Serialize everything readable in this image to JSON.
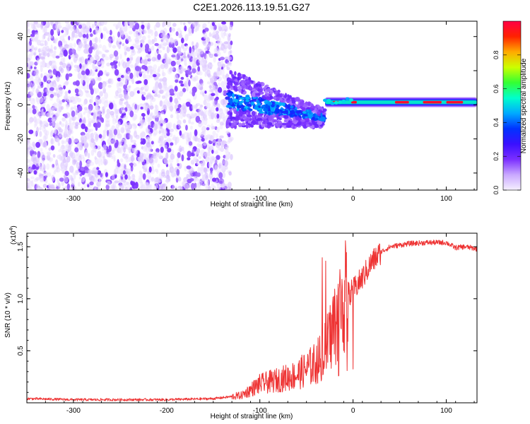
{
  "page": {
    "title": "C2E1.2026.113.19.51.G27"
  },
  "colors": {
    "snr_line": "#ee3333",
    "axis": "#000000",
    "colormap": [
      "#f5f0ff",
      "#c9a8ff",
      "#7b2fff",
      "#3a10ff",
      "#0033ff",
      "#00aaff",
      "#00ffcc",
      "#33ff33",
      "#ccff00",
      "#ffaa00",
      "#ff2200",
      "#ff0044"
    ]
  },
  "chart_data": [
    {
      "type": "heatmap",
      "title": "C2E1.2026.113.19.51.G27",
      "xlabel": "Height of straight line (km)",
      "ylabel": "Frequency (Hz)",
      "xlim": [
        -350,
        133
      ],
      "ylim": [
        -50,
        49
      ],
      "x_ticks": [
        -300,
        -200,
        -100,
        0,
        100
      ],
      "y_ticks": [
        -40,
        -20,
        0,
        20,
        40
      ],
      "colorbar": {
        "label": "Normalized spectral amplitude",
        "range": [
          0,
          1
        ],
        "ticks": [
          "0.0",
          "0.2",
          "0.4",
          "0.6",
          "0.8"
        ],
        "tick_values": [
          0,
          0.2,
          0.4,
          0.6,
          0.8
        ]
      },
      "regions": [
        {
          "name": "noise",
          "x": [
            -350,
            -130
          ],
          "freq": [
            -50,
            49
          ],
          "amplitude": [
            0.02,
            0.2
          ]
        },
        {
          "name": "transition",
          "x": [
            -135,
            -30
          ],
          "freq_center": [
            4,
            -8
          ],
          "amplitude": [
            0.15,
            0.4
          ]
        },
        {
          "name": "tone",
          "x": [
            -30,
            133
          ],
          "freq_center": 1.5,
          "amplitude": [
            0.8,
            1.0
          ]
        }
      ]
    },
    {
      "type": "line",
      "xlabel": "Height of straight line (km)",
      "ylabel": "SNR (10 * v/v)",
      "y_multiplier": "(x10",
      "y_multiplier_exp": "4",
      "xlim": [
        -350,
        133
      ],
      "ylim": [
        0,
        1.63
      ],
      "x_ticks": [
        -300,
        -200,
        -100,
        0,
        100
      ],
      "y_ticks": [
        0.5,
        1.0,
        1.5
      ],
      "y_tick_labels": [
        "0.5",
        "1.0",
        "1.5"
      ],
      "series": [
        {
          "x": [
            -350,
            -300,
            -250,
            -200,
            -150,
            -120,
            -100,
            -80,
            -60,
            -40,
            -30,
            -20,
            -10,
            0,
            10,
            20,
            30,
            40,
            60,
            80,
            100,
            110,
            120,
            133
          ],
          "y": [
            0.04,
            0.03,
            0.03,
            0.03,
            0.04,
            0.07,
            0.18,
            0.22,
            0.27,
            0.38,
            0.5,
            0.75,
            1.0,
            1.08,
            1.2,
            1.35,
            1.45,
            1.5,
            1.53,
            1.54,
            1.54,
            1.49,
            1.5,
            1.48
          ]
        }
      ]
    }
  ]
}
